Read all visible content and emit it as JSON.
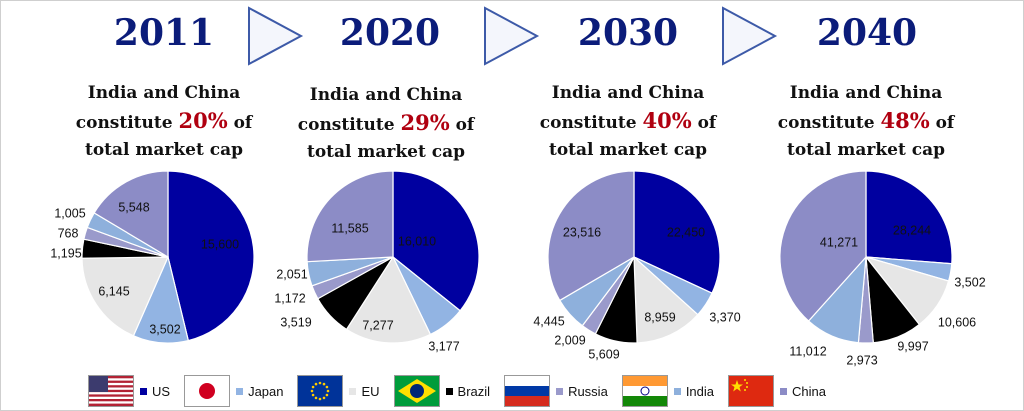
{
  "colors": {
    "US": "#0000a0",
    "Japan": "#92b4e3",
    "EU": "#e6e6e6",
    "Brazil": "#000000",
    "Russia": "#9a9acb",
    "India": "#8eb0dc",
    "China": "#8c8cc6",
    "heading": "#0b1c7a",
    "highlight": "#b00010"
  },
  "captions": {
    "line1": "India and China",
    "line2_prefix": "constitute",
    "line2_suffix": "of",
    "line3": "total market cap"
  },
  "panels": [
    {
      "year": "2011",
      "percent": "20%"
    },
    {
      "year": "2020",
      "percent": "29%"
    },
    {
      "year": "2030",
      "percent": "40%"
    },
    {
      "year": "2040",
      "percent": "48%"
    }
  ],
  "legend": [
    {
      "key": "US",
      "label": "US",
      "flag": "us-flag-icon"
    },
    {
      "key": "Japan",
      "label": "Japan",
      "flag": "japan-flag-icon"
    },
    {
      "key": "EU",
      "label": "EU",
      "flag": "eu-flag-icon"
    },
    {
      "key": "Brazil",
      "label": "Brazil",
      "flag": "brazil-flag-icon"
    },
    {
      "key": "Russia",
      "label": "Russia",
      "flag": "russia-flag-icon"
    },
    {
      "key": "India",
      "label": "India",
      "flag": "india-flag-icon"
    },
    {
      "key": "China",
      "label": "China",
      "flag": "china-flag-icon"
    }
  ],
  "chart_data": [
    {
      "type": "pie",
      "title": "2011",
      "categories": [
        "US",
        "Japan",
        "EU",
        "Brazil",
        "Russia",
        "India",
        "China"
      ],
      "values": [
        15600,
        3502,
        6145,
        1195,
        768,
        1005,
        5548
      ],
      "labels": [
        "15,600",
        "3,502",
        "6,145",
        "1,195",
        "768",
        "1,005",
        "5,548"
      ]
    },
    {
      "type": "pie",
      "title": "2020",
      "categories": [
        "US",
        "Japan",
        "EU",
        "Brazil",
        "Russia",
        "India",
        "China"
      ],
      "values": [
        16010,
        3177,
        7277,
        3519,
        1172,
        2051,
        11585
      ],
      "labels": [
        "16,010",
        "3,177",
        "7,277",
        "3,519",
        "1,172",
        "2,051",
        "11,585"
      ]
    },
    {
      "type": "pie",
      "title": "2030",
      "categories": [
        "US",
        "Japan",
        "EU",
        "Brazil",
        "Russia",
        "India",
        "China"
      ],
      "values": [
        22450,
        3370,
        8959,
        5609,
        2009,
        4445,
        23516
      ],
      "labels": [
        "22,450",
        "3,370",
        "8,959",
        "5,609",
        "2,009",
        "4,445",
        "23,516"
      ]
    },
    {
      "type": "pie",
      "title": "2040",
      "categories": [
        "US",
        "Japan",
        "EU",
        "Brazil",
        "Russia",
        "India",
        "China"
      ],
      "values": [
        28244,
        3502,
        10606,
        9997,
        2973,
        11012,
        41271
      ],
      "labels": [
        "28,244",
        "3,502",
        "10,606",
        "9,997",
        "2,973",
        "11,012",
        "41,271"
      ]
    }
  ]
}
